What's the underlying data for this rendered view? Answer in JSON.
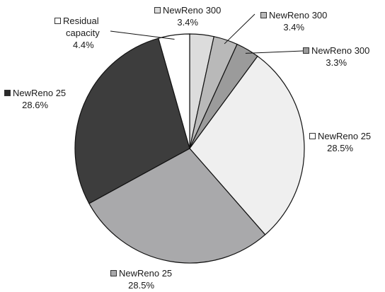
{
  "chart_data": {
    "type": "pie",
    "title": "",
    "start": "12 o'clock, clockwise",
    "slices": [
      {
        "label": "NewReno 300",
        "value": 3.4,
        "pct": "3.4%",
        "color": "#dcdcdc"
      },
      {
        "label": "NewReno 300",
        "value": 3.4,
        "pct": "3.4%",
        "color": "#b9b9b9"
      },
      {
        "label": "NewReno 300",
        "value": 3.3,
        "pct": "3.3%",
        "color": "#9b9b9b"
      },
      {
        "label": "NewReno 25",
        "value": 28.5,
        "pct": "28.5%",
        "color": "#efefef"
      },
      {
        "label": "NewReno 25",
        "value": 28.5,
        "pct": "28.5%",
        "color": "#a9a9ab"
      },
      {
        "label": "NewReno 25",
        "value": 28.6,
        "pct": "28.6%",
        "color": "#3d3d3d"
      },
      {
        "label": "Residual capacity",
        "label_lines": [
          "Residual",
          "capacity"
        ],
        "value": 4.4,
        "pct": "4.4%",
        "color": "#ffffff"
      }
    ]
  }
}
